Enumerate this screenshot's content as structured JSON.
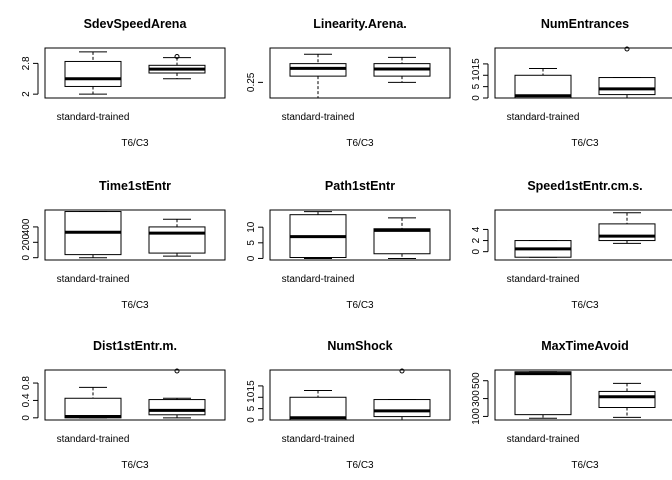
{
  "chart_data": [
    {
      "type": "box",
      "title": "SdevSpeedArena",
      "categories": [
        "standard-trained",
        ""
      ],
      "xlabel": "T6/C3",
      "yticks": [
        2.0,
        2.8
      ],
      "ylim": [
        1.9,
        3.2
      ],
      "boxes": [
        {
          "min": 2.0,
          "q1": 2.2,
          "median": 2.4,
          "q3": 2.85,
          "max": 3.1,
          "outliers": []
        },
        {
          "min": 2.4,
          "q1": 2.55,
          "median": 2.65,
          "q3": 2.75,
          "max": 2.95,
          "outliers": [
            2.98
          ]
        }
      ]
    },
    {
      "type": "box",
      "title": "Linearity.Arena.",
      "categories": [
        "standard-trained",
        ""
      ],
      "xlabel": "T6/C3",
      "yticks": [
        0.25
      ],
      "ylim": [
        0.2,
        0.36
      ],
      "boxes": [
        {
          "min": 0.2,
          "q1": 0.27,
          "median": 0.295,
          "q3": 0.31,
          "max": 0.34,
          "outliers": []
        },
        {
          "min": 0.25,
          "q1": 0.27,
          "median": 0.293,
          "q3": 0.31,
          "max": 0.33,
          "outliers": []
        }
      ]
    },
    {
      "type": "box",
      "title": "NumEntrances",
      "categories": [
        "standard-trained",
        ""
      ],
      "xlabel": "T6/C3",
      "yticks": [
        0,
        5,
        10,
        15
      ],
      "ylim": [
        0,
        22
      ],
      "boxes": [
        {
          "min": 0,
          "q1": 0,
          "median": 1,
          "q3": 10,
          "max": 13,
          "outliers": []
        },
        {
          "min": 0,
          "q1": 1.5,
          "median": 4,
          "q3": 9,
          "max": 9,
          "outliers": [
            22
          ]
        }
      ]
    },
    {
      "type": "box",
      "title": "Time1stEntr",
      "categories": [
        "standard-trained",
        ""
      ],
      "xlabel": "T6/C3",
      "yticks": [
        0,
        200,
        400
      ],
      "ylim": [
        -30,
        620
      ],
      "boxes": [
        {
          "min": 0,
          "q1": 40,
          "median": 330,
          "q3": 600,
          "max": 600,
          "outliers": []
        },
        {
          "min": 20,
          "q1": 60,
          "median": 320,
          "q3": 400,
          "max": 500,
          "outliers": []
        }
      ]
    },
    {
      "type": "box",
      "title": "Path1stEntr",
      "categories": [
        "standard-trained",
        ""
      ],
      "xlabel": "T6/C3",
      "yticks": [
        0,
        5,
        10
      ],
      "ylim": [
        -0.5,
        15.5
      ],
      "boxes": [
        {
          "min": 0,
          "q1": 0.3,
          "median": 7,
          "q3": 14,
          "max": 15,
          "outliers": []
        },
        {
          "min": 0,
          "q1": 1.5,
          "median": 9,
          "q3": 9.5,
          "max": 13,
          "outliers": []
        }
      ]
    },
    {
      "type": "box",
      "title": "Speed1stEntr.cm.s.",
      "categories": [
        "standard-trained",
        ""
      ],
      "xlabel": "T6/C3",
      "yticks": [
        0,
        2,
        4
      ],
      "ylim": [
        -1.5,
        7.5
      ],
      "boxes": [
        {
          "min": -1,
          "q1": -1,
          "median": 0.5,
          "q3": 2,
          "max": 2,
          "outliers": []
        },
        {
          "min": 1.5,
          "q1": 2,
          "median": 2.8,
          "q3": 5,
          "max": 7,
          "outliers": []
        }
      ]
    },
    {
      "type": "box",
      "title": "Dist1stEntr.m.",
      "categories": [
        "standard-trained",
        ""
      ],
      "xlabel": "T6/C3",
      "yticks": [
        0.0,
        0.4,
        0.8
      ],
      "ylim": [
        -0.05,
        1.1
      ],
      "boxes": [
        {
          "min": 0,
          "q1": 0,
          "median": 0.03,
          "q3": 0.45,
          "max": 0.7,
          "outliers": []
        },
        {
          "min": 0,
          "q1": 0.07,
          "median": 0.17,
          "q3": 0.42,
          "max": 0.45,
          "outliers": [
            1.1
          ]
        }
      ]
    },
    {
      "type": "box",
      "title": "NumShock",
      "categories": [
        "standard-trained",
        ""
      ],
      "xlabel": "T6/C3",
      "yticks": [
        0,
        5,
        10,
        15
      ],
      "ylim": [
        0,
        22
      ],
      "boxes": [
        {
          "min": 0,
          "q1": 0,
          "median": 1,
          "q3": 10,
          "max": 13,
          "outliers": []
        },
        {
          "min": 0,
          "q1": 1.5,
          "median": 4,
          "q3": 9,
          "max": 9,
          "outliers": [
            22
          ]
        }
      ]
    },
    {
      "type": "box",
      "title": "MaxTimeAvoid",
      "categories": [
        "standard-trained",
        ""
      ],
      "xlabel": "T6/C3",
      "yticks": [
        100,
        300,
        500
      ],
      "ylim": [
        60,
        620
      ],
      "boxes": [
        {
          "min": 80,
          "q1": 120,
          "median": 580,
          "q3": 600,
          "max": 600,
          "outliers": []
        },
        {
          "min": 90,
          "q1": 200,
          "median": 320,
          "q3": 380,
          "max": 470,
          "outliers": []
        }
      ]
    }
  ]
}
